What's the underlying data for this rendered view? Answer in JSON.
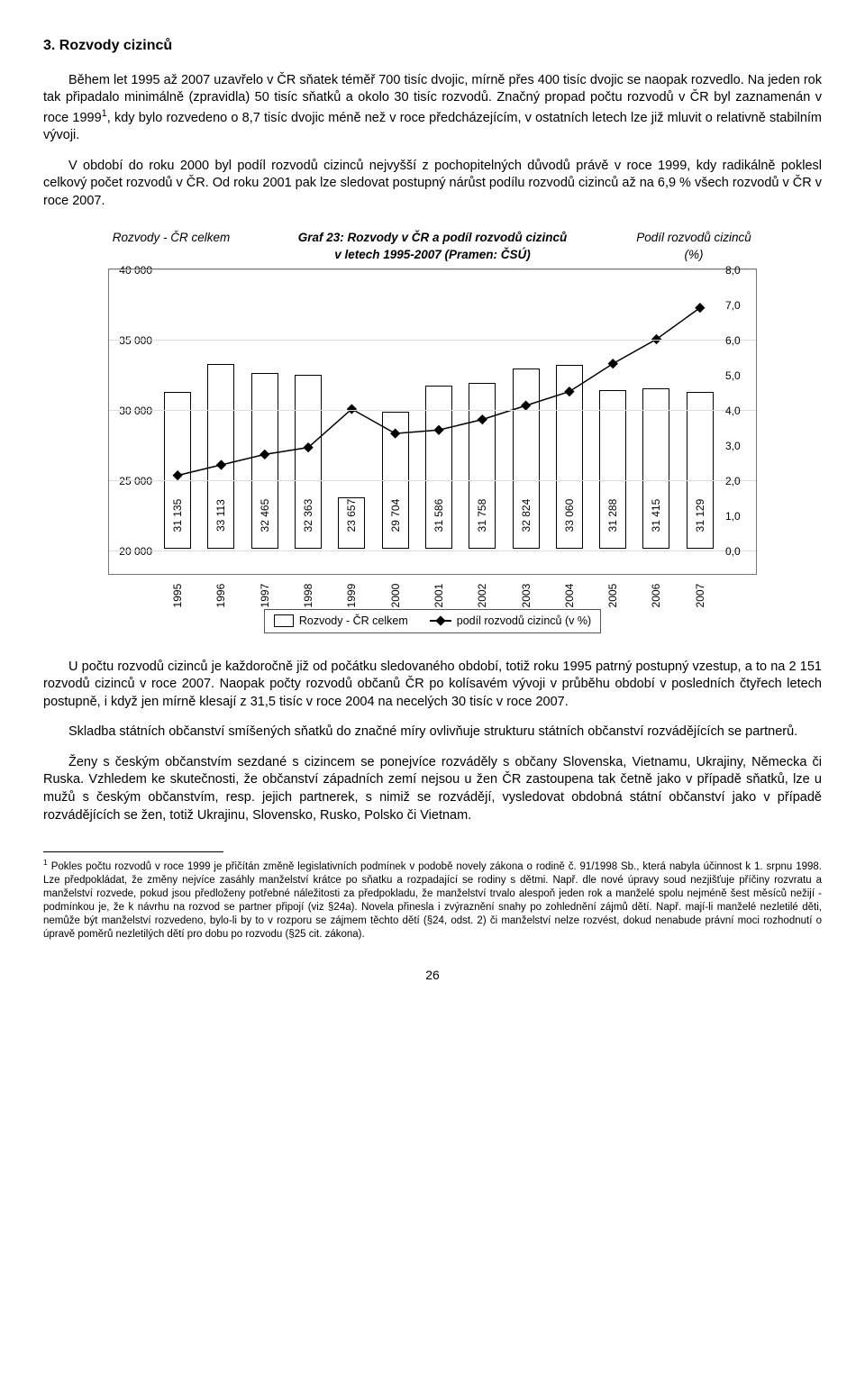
{
  "heading": "3. Rozvody cizinců",
  "para1": "Během let 1995 až 2007 uzavřelo v ČR sňatek téměř 700 tisíc dvojic, mírně přes 400 tisíc dvojic se naopak rozvedlo. Na jeden rok tak připadalo minimálně (zpravidla) 50 tisíc sňatků a okolo 30 tisíc rozvodů. Značný propad počtu rozvodů v ČR byl zaznamenán v roce 1999",
  "para1b": ", kdy bylo rozvedeno o 8,7 tisíc dvojic méně než v roce předcházejícím, v ostatních letech lze již mluvit o relativně stabilním vývoji.",
  "para2": "V období do roku 2000 byl podíl rozvodů cizinců nejvyšší z pochopitelných důvodů právě v roce 1999, kdy radikálně poklesl celkový počet rozvodů v ČR. Od roku 2001 pak lze sledovat postupný nárůst podílu rozvodů cizinců až na 6,9 % všech rozvodů v ČR v roce 2007.",
  "chart": {
    "title_line1": "Graf 23: Rozvody v ČR a podíl rozvodů cizinců",
    "title_line2": "v letech 1995-2007 (Pramen: ČSÚ)",
    "left_axis_label": "Rozvody - ČR celkem",
    "right_axis_label": "Podíl rozvodů cizinců (%)",
    "years": [
      "1995",
      "1996",
      "1997",
      "1998",
      "1999",
      "2000",
      "2001",
      "2002",
      "2003",
      "2004",
      "2005",
      "2006",
      "2007"
    ],
    "bar_values": [
      31135,
      33113,
      32465,
      32363,
      23657,
      29704,
      31586,
      31758,
      32824,
      33060,
      31288,
      31415,
      31129
    ],
    "bar_labels": [
      "31 135",
      "33 113",
      "32 465",
      "32 363",
      "23 657",
      "29 704",
      "31 586",
      "31 758",
      "32 824",
      "33 060",
      "31 288",
      "31 415",
      "31 129"
    ],
    "line_values": [
      2.1,
      2.4,
      2.7,
      2.9,
      4.0,
      3.3,
      3.4,
      3.7,
      4.1,
      4.5,
      5.3,
      6.0,
      6.9
    ],
    "y_left_ticks": [
      "20 000",
      "25 000",
      "30 000",
      "35 000",
      "40 000"
    ],
    "y_left_min": 20000,
    "y_left_max": 40000,
    "y_right_ticks": [
      "0,0",
      "1,0",
      "2,0",
      "3,0",
      "4,0",
      "5,0",
      "6,0",
      "7,0",
      "8,0"
    ],
    "y_right_min": 0,
    "y_right_max": 8,
    "bar_color": "#ffffff",
    "bar_border": "#000000",
    "line_color": "#000000",
    "marker_style": "diamond",
    "legend_bar": "Rozvody - ČR celkem",
    "legend_line": "podíl rozvodů cizinců (v %)"
  },
  "para3": "U počtu rozvodů cizinců je každoročně již od počátku sledovaného období, totiž roku 1995 patrný postupný vzestup, a to na 2 151 rozvodů cizinců v roce 2007. Naopak počty rozvodů občanů ČR po kolísavém vývoji v průběhu období v posledních čtyřech letech postupně, i když jen mírně klesají z 31,5 tisíc v roce 2004 na necelých 30 tisíc v roce 2007.",
  "para4": "Skladba státních občanství smíšených sňatků do značné míry ovlivňuje strukturu státních občanství rozvádějících se partnerů.",
  "para5": "Ženy s českým občanstvím sezdané s cizincem se ponejvíce rozváděly s občany Slovenska, Vietnamu, Ukrajiny, Německa či Ruska. Vzhledem ke skutečnosti, že občanství západních zemí nejsou u žen ČR zastoupena tak četně jako v případě sňatků, lze u mužů s českým občanstvím, resp. jejich partnerek, s nimiž se rozvádějí, vysledovat obdobná státní občanství jako v případě rozvádějících se žen, totiž Ukrajinu, Slovensko, Rusko, Polsko či Vietnam.",
  "footnote_marker": "1",
  "footnote": "Pokles počtu rozvodů v roce 1999 je přičítán změně legislativních podmínek v podobě novely zákona o rodině č. 91/1998 Sb., která nabyla účinnost k 1. srpnu 1998. Lze předpokládat, že změny nejvíce zasáhly manželství krátce po sňatku a rozpadající se rodiny s dětmi. Např. dle nové úpravy soud nezjišťuje příčiny rozvratu a manželství rozvede, pokud jsou předloženy potřebné náležitosti za předpokladu, že manželství trvalo alespoň jeden rok a manželé spolu nejméně šest měsíců nežijí - podmínkou je, že k návrhu na rozvod se partner připojí (viz §24a). Novela přinesla i zvýraznění snahy po zohlednění zájmů dětí. Např. mají-li manželé nezletilé děti, nemůže být manželství rozvedeno, bylo-li by to v rozporu se zájmem těchto dětí (§24, odst. 2) či manželství nelze rozvést, dokud nenabude právní moci rozhodnutí o úpravě poměrů nezletilých dětí pro dobu po rozvodu (§25 cit. zákona).",
  "page_number": "26"
}
